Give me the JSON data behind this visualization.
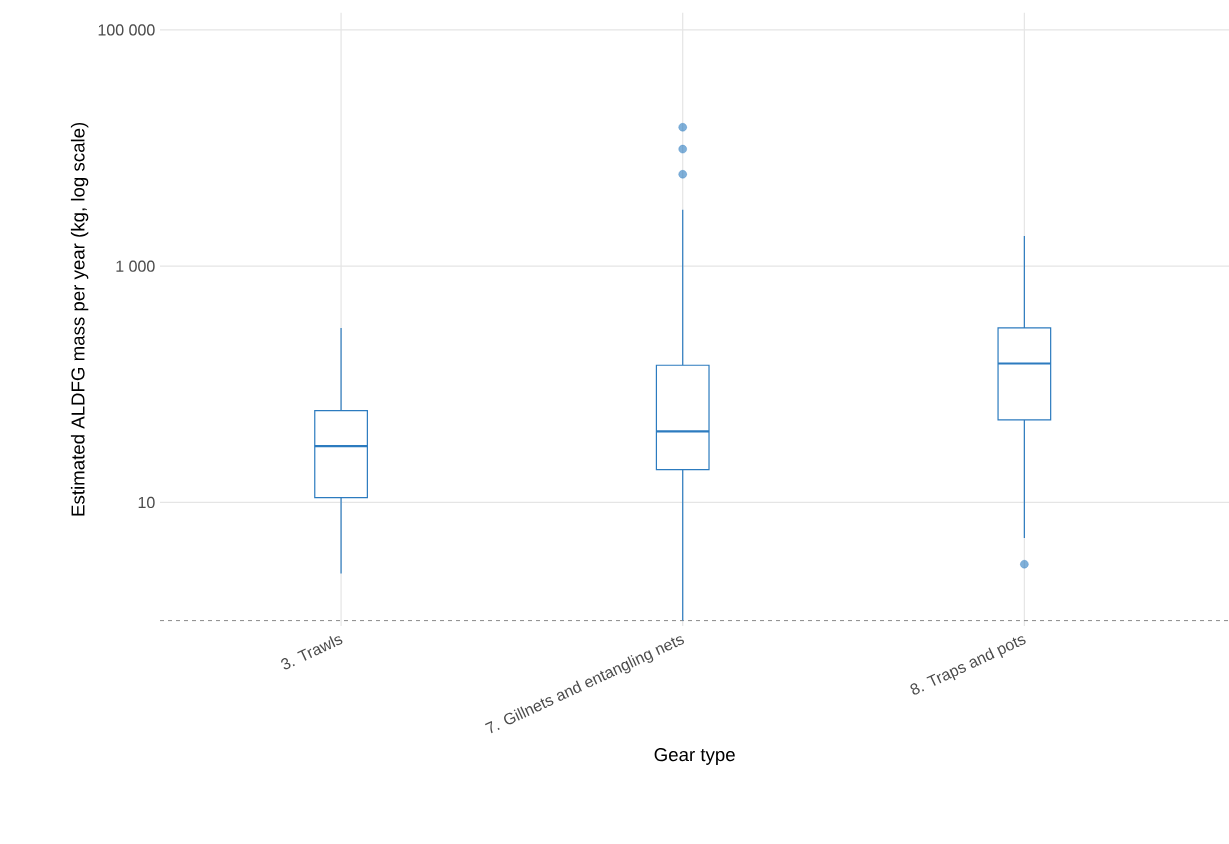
{
  "chart_data": {
    "type": "box",
    "xlabel": "Gear type",
    "ylabel": "Estimated ALDFG mass per year (kg, log scale)",
    "categories": [
      "3. Trawls",
      "7. Gillnets and entangling nets",
      "8. Traps and pots"
    ],
    "series": [
      {
        "color": "#2c7bbf",
        "boxes": [
          {
            "low": 2.5,
            "q1": 11,
            "median": 30,
            "q3": 60,
            "high": 300
          },
          {
            "low": 1,
            "q1": 19,
            "median": 40,
            "q3": 145,
            "high": 3000,
            "outliers": [
              6000,
              9800,
              15000
            ]
          },
          {
            "low": 5,
            "q1": 50,
            "median": 150,
            "q3": 300,
            "high": 1800,
            "outliers": [
              3
            ]
          }
        ]
      }
    ],
    "log": "y",
    "ylim": [
      0.9,
      140000
    ],
    "yticks": [
      {
        "value": 10,
        "label": "10"
      },
      {
        "value": 1000,
        "label": "1 000"
      },
      {
        "value": 100000,
        "label": "100 000"
      }
    ],
    "grid": true,
    "ref_lines": [
      {
        "axis": "y",
        "value": 1,
        "color": "#808080",
        "line_style": "dashed"
      }
    ]
  }
}
